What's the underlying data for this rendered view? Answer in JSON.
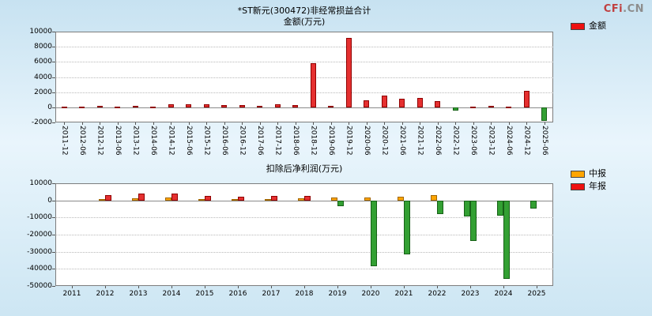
{
  "logo": {
    "part1": "CFi",
    "part2": ".CN"
  },
  "chart_data": [
    {
      "type": "bar",
      "title": "*ST新元(300472)非经常损益合计",
      "unit_label": "金额(万元)",
      "legend": [
        {
          "label": "金额",
          "color": "#ee1111"
        }
      ],
      "legend_position": "right-top",
      "grid": true,
      "categories": [
        "2011-12",
        "2012-06",
        "2012-12",
        "2013-06",
        "2013-12",
        "2014-06",
        "2014-12",
        "2015-06",
        "2015-12",
        "2016-06",
        "2016-12",
        "2017-06",
        "2017-12",
        "2018-06",
        "2018-12",
        "2019-06",
        "2019-12",
        "2020-06",
        "2020-12",
        "2021-06",
        "2021-12",
        "2022-06",
        "2022-12",
        "2023-06",
        "2023-12",
        "2024-06",
        "2024-12",
        "2025-06"
      ],
      "values": [
        120,
        60,
        150,
        80,
        200,
        120,
        350,
        400,
        350,
        250,
        300,
        200,
        350,
        300,
        5800,
        150,
        9200,
        900,
        1600,
        1100,
        1200,
        800,
        -400,
        100,
        150,
        100,
        2200,
        -1800
      ],
      "ylim": [
        -2000,
        10000
      ],
      "yticks": [
        10000,
        8000,
        6000,
        4000,
        2000,
        0,
        -2000
      ],
      "positive_color": "#e53030",
      "positive_border": "#8f0000",
      "negative_color": "#33a033",
      "negative_border": "#176117"
    },
    {
      "type": "bar",
      "title": "扣除后净利润(万元)",
      "legend": [
        {
          "label": "中报",
          "color": "#ffa500"
        },
        {
          "label": "年报",
          "color": "#ee1111"
        }
      ],
      "legend_position": "right-top",
      "grid": true,
      "categories": [
        "2011",
        "2012",
        "2013",
        "2014",
        "2015",
        "2016",
        "2017",
        "2018",
        "2019",
        "2020",
        "2021",
        "2022",
        "2023",
        "2024",
        "2025"
      ],
      "series": [
        {
          "name": "中报",
          "color": "#ffa500",
          "border": "#a06500",
          "values": [
            null,
            800,
            1200,
            1500,
            800,
            800,
            1000,
            1200,
            1500,
            1500,
            2200,
            3000,
            -9500,
            -9000,
            -5000
          ]
        },
        {
          "name": "年报",
          "color": "#e53030",
          "border": "#8f0000",
          "values": [
            null,
            3200,
            3800,
            3800,
            2600,
            2200,
            2600,
            2600,
            -3500,
            -38500,
            -31500,
            -8000,
            -23500,
            -46000,
            null
          ]
        }
      ],
      "ylim": [
        -50000,
        10000
      ],
      "yticks": [
        10000,
        0,
        -10000,
        -20000,
        -30000,
        -40000,
        -50000
      ],
      "negative_color": "#33a033",
      "negative_border": "#176117"
    }
  ]
}
